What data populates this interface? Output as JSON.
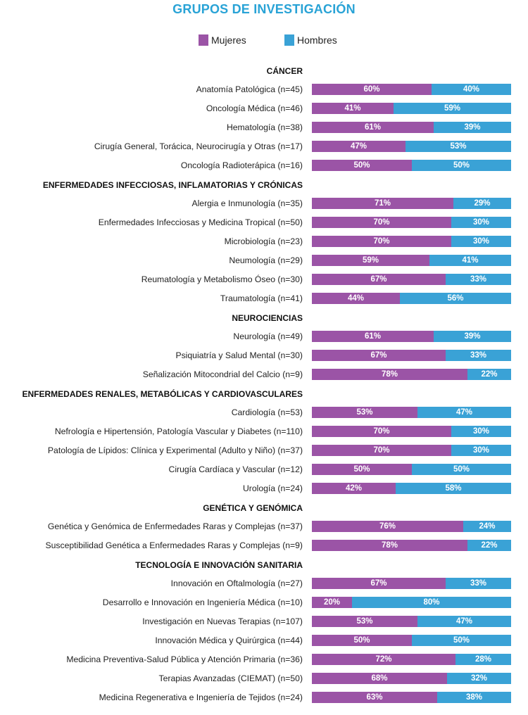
{
  "chart_data": {
    "type": "bar",
    "stacked": true,
    "orientation": "horizontal",
    "title": "GRUPOS DE INVESTIGACIÓN",
    "legend": [
      {
        "name": "Mujeres",
        "color": "#9b54a6"
      },
      {
        "name": "Hombres",
        "color": "#3aa2d6"
      }
    ],
    "groups": [
      {
        "name": "CÁNCER",
        "items": [
          {
            "label": "Anatomía Patológica (n=45)",
            "mujeres": 60,
            "hombres": 40
          },
          {
            "label": "Oncología Médica (n=46)",
            "mujeres": 41,
            "hombres": 59
          },
          {
            "label": "Hematología (n=38)",
            "mujeres": 61,
            "hombres": 39
          },
          {
            "label": "Cirugía General, Torácica, Neurocirugía y Otras (n=17)",
            "mujeres": 47,
            "hombres": 53
          },
          {
            "label": "Oncología Radioterápica (n=16)",
            "mujeres": 50,
            "hombres": 50
          }
        ]
      },
      {
        "name": "ENFERMEDADES INFECCIOSAS, INFLAMATORIAS Y CRÓNICAS",
        "items": [
          {
            "label": "Alergia e Inmunología (n=35)",
            "mujeres": 71,
            "hombres": 29
          },
          {
            "label": "Enfermedades Infecciosas y Medicina Tropical (n=50)",
            "mujeres": 70,
            "hombres": 30
          },
          {
            "label": "Microbiología (n=23)",
            "mujeres": 70,
            "hombres": 30
          },
          {
            "label": "Neumología (n=29)",
            "mujeres": 59,
            "hombres": 41
          },
          {
            "label": "Reumatología y Metabolismo Óseo (n=30)",
            "mujeres": 67,
            "hombres": 33
          },
          {
            "label": "Traumatología (n=41)",
            "mujeres": 44,
            "hombres": 56
          }
        ]
      },
      {
        "name": "NEUROCIENCIAS",
        "items": [
          {
            "label": "Neurología (n=49)",
            "mujeres": 61,
            "hombres": 39
          },
          {
            "label": "Psiquiatría y Salud Mental (n=30)",
            "mujeres": 67,
            "hombres": 33
          },
          {
            "label": "Señalización Mitocondrial del Calcio (n=9)",
            "mujeres": 78,
            "hombres": 22
          }
        ]
      },
      {
        "name": "ENFERMEDADES RENALES, METABÓLICAS Y CARDIOVASCULARES",
        "items": [
          {
            "label": "Cardiología (n=53)",
            "mujeres": 53,
            "hombres": 47
          },
          {
            "label": "Nefrología e Hipertensión, Patología Vascular y Diabetes (n=110)",
            "mujeres": 70,
            "hombres": 30
          },
          {
            "label": "Patología de Lípidos: Clínica y Experimental (Adulto y Niño) (n=37)",
            "mujeres": 70,
            "hombres": 30
          },
          {
            "label": "Cirugía Cardíaca y Vascular (n=12)",
            "mujeres": 50,
            "hombres": 50
          },
          {
            "label": "Urología (n=24)",
            "mujeres": 42,
            "hombres": 58
          }
        ]
      },
      {
        "name": "GENÉTICA Y GENÓMICA",
        "items": [
          {
            "label": "Genética y Genómica de Enfermedades Raras y Complejas (n=37)",
            "mujeres": 76,
            "hombres": 24
          },
          {
            "label": "Susceptibilidad Genética a Enfermedades Raras y Complejas (n=9)",
            "mujeres": 78,
            "hombres": 22
          }
        ]
      },
      {
        "name": "TECNOLOGÍA E INNOVACIÓN SANITARIA",
        "items": [
          {
            "label": "Innovación en Oftalmología (n=27)",
            "mujeres": 67,
            "hombres": 33
          },
          {
            "label": "Desarrollo e Innovación en Ingeniería Médica (n=10)",
            "mujeres": 20,
            "hombres": 80
          },
          {
            "label": "Investigación en Nuevas Terapias (n=107)",
            "mujeres": 53,
            "hombres": 47
          },
          {
            "label": "Innovación Médica y Quirúrgica (n=44)",
            "mujeres": 50,
            "hombres": 50
          },
          {
            "label": "Medicina Preventiva-Salud Pública y Atención Primaria (n=36)",
            "mujeres": 72,
            "hombres": 28
          },
          {
            "label": "Terapias Avanzadas (CIEMAT) (n=50)",
            "mujeres": 68,
            "hombres": 32
          },
          {
            "label": "Medicina Regenerativa e Ingeniería de Tejidos (n=24)",
            "mujeres": 63,
            "hombres": 38
          }
        ]
      }
    ],
    "value_suffix": "%"
  }
}
